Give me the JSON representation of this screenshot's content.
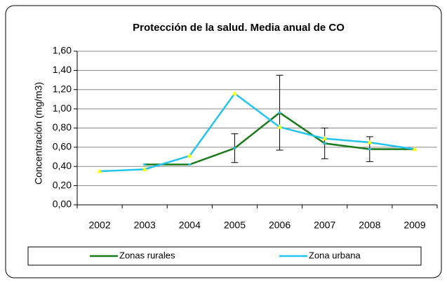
{
  "chart_data": {
    "type": "line",
    "title": "Protección de la salud. Media anual de CO",
    "y_label": "Concentración (mg/m3)",
    "categories": [
      "2002",
      "2003",
      "2004",
      "2005",
      "2006",
      "2007",
      "2008",
      "2009"
    ],
    "series": [
      {
        "name": "Zonas  rurales",
        "color": "#1a7a1a",
        "values": [
          null,
          0.42,
          0.42,
          0.59,
          0.96,
          0.64,
          0.58,
          0.58
        ],
        "errors": [
          null,
          null,
          null,
          0.15,
          0.39,
          0.16,
          0.13,
          null
        ]
      },
      {
        "name": "Zona urbana",
        "color": "#22c4ee",
        "marker_color": "#ffff00",
        "values": [
          0.35,
          0.37,
          0.51,
          1.16,
          0.81,
          0.69,
          0.65,
          0.58
        ]
      }
    ],
    "ylim": [
      0,
      1.6
    ],
    "yticks": [
      {
        "value": 0,
        "label": "0,00"
      },
      {
        "value": 0.2,
        "label": "0,20"
      },
      {
        "value": 0.4,
        "label": "0,40"
      },
      {
        "value": 0.6,
        "label": "0,60"
      },
      {
        "value": 0.8,
        "label": "0,80"
      },
      {
        "value": 1,
        "label": "1,00"
      },
      {
        "value": 1.2,
        "label": "1,20"
      },
      {
        "value": 1.4,
        "label": "1,40"
      },
      {
        "value": 1.6,
        "label": "1,60"
      }
    ],
    "grid": true
  }
}
